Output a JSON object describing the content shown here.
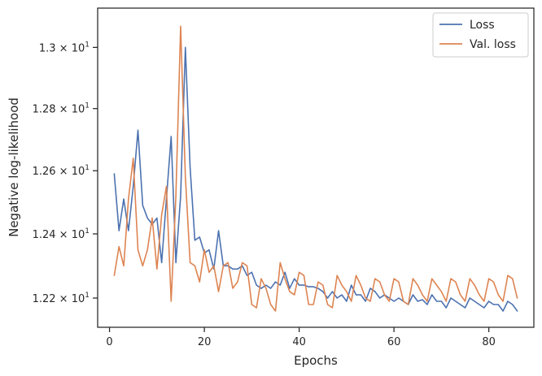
{
  "chart_data": {
    "type": "line",
    "xlabel": "Epochs",
    "ylabel": "Negative log-likelihood",
    "y_scale": "log",
    "xlim": [
      -2.5,
      89.5
    ],
    "ylim": [
      12.11,
      13.13
    ],
    "x_ticks": [
      {
        "value": 0,
        "label": "0"
      },
      {
        "value": 20,
        "label": "20"
      },
      {
        "value": 40,
        "label": "40"
      },
      {
        "value": 60,
        "label": "60"
      },
      {
        "value": 80,
        "label": "80"
      }
    ],
    "y_ticks": [
      {
        "value": 12.2,
        "mant": "1.22",
        "base": "10",
        "exp": "1"
      },
      {
        "value": 12.4,
        "mant": "1.24",
        "base": "10",
        "exp": "1"
      },
      {
        "value": 12.6,
        "mant": "1.26",
        "base": "10",
        "exp": "1"
      },
      {
        "value": 12.8,
        "mant": "1.28",
        "base": "10",
        "exp": "1"
      },
      {
        "value": 13.0,
        "mant": "1.3",
        "base": "10",
        "exp": "1"
      }
    ],
    "grid": false,
    "legend_position": "top-right",
    "x": [
      1,
      2,
      3,
      4,
      5,
      6,
      7,
      8,
      9,
      10,
      11,
      12,
      13,
      14,
      15,
      16,
      17,
      18,
      19,
      20,
      21,
      22,
      23,
      24,
      25,
      26,
      27,
      28,
      29,
      30,
      31,
      32,
      33,
      34,
      35,
      36,
      37,
      38,
      39,
      40,
      41,
      42,
      43,
      44,
      45,
      46,
      47,
      48,
      49,
      50,
      51,
      52,
      53,
      54,
      55,
      56,
      57,
      58,
      59,
      60,
      61,
      62,
      63,
      64,
      65,
      66,
      67,
      68,
      69,
      70,
      71,
      72,
      73,
      74,
      75,
      76,
      77,
      78,
      79,
      80,
      81,
      82,
      83,
      84,
      85,
      86
    ],
    "series": [
      {
        "name": "Loss",
        "color": "#4c72b0",
        "values": [
          12.59,
          12.41,
          12.51,
          12.41,
          12.55,
          12.73,
          12.49,
          12.45,
          12.43,
          12.45,
          12.31,
          12.51,
          12.71,
          12.31,
          12.52,
          13.0,
          12.61,
          12.38,
          12.39,
          12.34,
          12.35,
          12.29,
          12.41,
          12.3,
          12.3,
          12.29,
          12.29,
          12.3,
          12.27,
          12.28,
          12.24,
          12.23,
          12.24,
          12.23,
          12.25,
          12.24,
          12.28,
          12.23,
          12.26,
          12.24,
          12.24,
          12.235,
          12.235,
          12.23,
          12.22,
          12.2,
          12.22,
          12.2,
          12.21,
          12.19,
          12.24,
          12.21,
          12.21,
          12.19,
          12.23,
          12.22,
          12.2,
          12.21,
          12.2,
          12.19,
          12.2,
          12.19,
          12.18,
          12.21,
          12.19,
          12.195,
          12.18,
          12.21,
          12.19,
          12.19,
          12.17,
          12.2,
          12.19,
          12.18,
          12.17,
          12.2,
          12.19,
          12.18,
          12.17,
          12.19,
          12.18,
          12.18,
          12.16,
          12.19,
          12.18,
          12.16
        ]
      },
      {
        "name": "Val. loss",
        "color": "#dd8452",
        "values": [
          12.27,
          12.36,
          12.3,
          12.51,
          12.64,
          12.35,
          12.3,
          12.35,
          12.45,
          12.29,
          12.46,
          12.55,
          12.19,
          12.52,
          13.07,
          12.58,
          12.31,
          12.3,
          12.25,
          12.35,
          12.28,
          12.3,
          12.22,
          12.3,
          12.31,
          12.23,
          12.25,
          12.31,
          12.3,
          12.18,
          12.17,
          12.26,
          12.23,
          12.18,
          12.16,
          12.31,
          12.26,
          12.22,
          12.21,
          12.28,
          12.27,
          12.18,
          12.18,
          12.25,
          12.24,
          12.18,
          12.17,
          12.27,
          12.24,
          12.22,
          12.19,
          12.27,
          12.24,
          12.2,
          12.19,
          12.26,
          12.25,
          12.21,
          12.19,
          12.26,
          12.25,
          12.19,
          12.18,
          12.26,
          12.24,
          12.21,
          12.19,
          12.26,
          12.24,
          12.22,
          12.19,
          12.26,
          12.25,
          12.21,
          12.19,
          12.26,
          12.24,
          12.21,
          12.19,
          12.26,
          12.25,
          12.21,
          12.19,
          12.27,
          12.26,
          12.2
        ]
      }
    ]
  }
}
